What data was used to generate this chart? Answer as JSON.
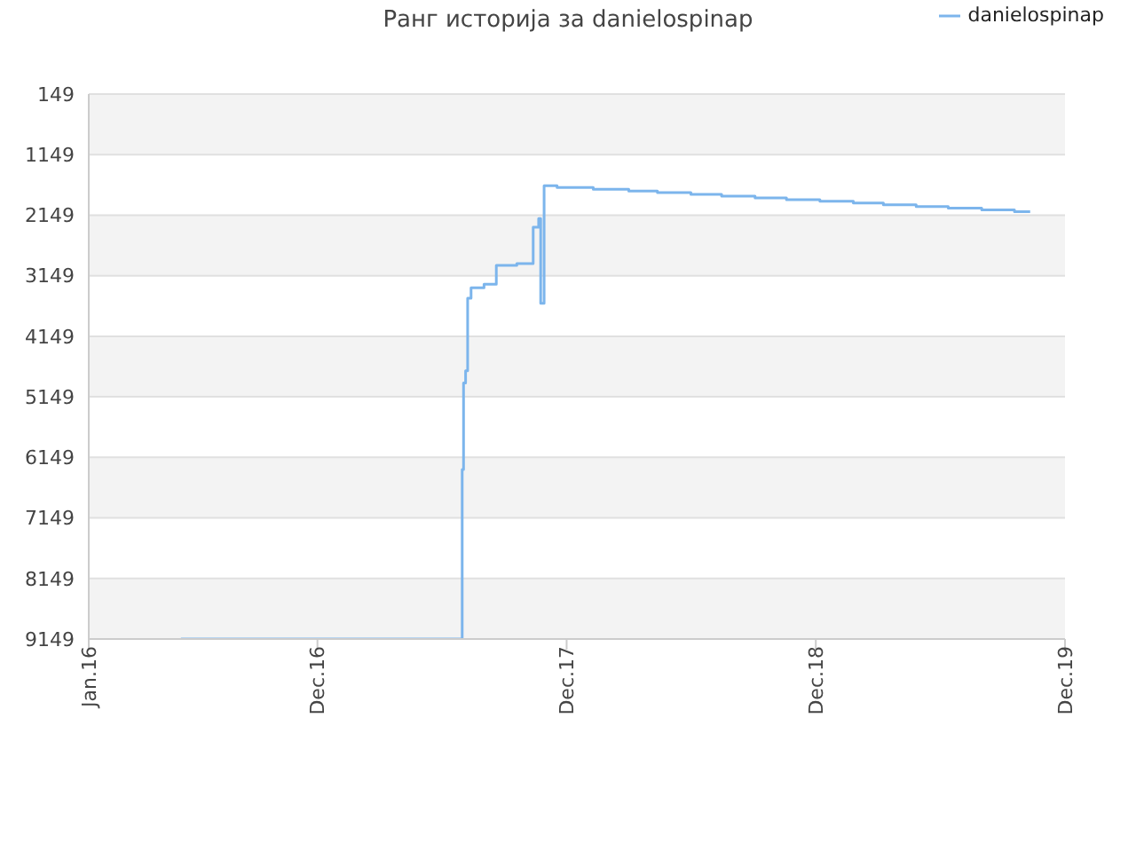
{
  "chart_data": {
    "type": "step",
    "title": "Ранг историја за danielospinap",
    "x": [
      "2016-05-15",
      "2017-07-01",
      "2017-07-03",
      "2017-07-06",
      "2017-07-09",
      "2017-07-14",
      "2017-08-02",
      "2017-08-20",
      "2017-09-19",
      "2017-10-13",
      "2017-10-21",
      "2017-10-24",
      "2017-10-29",
      "2017-11-17",
      "2018-01-09",
      "2018-03-02",
      "2018-04-13",
      "2018-06-01",
      "2018-07-16",
      "2018-09-03",
      "2018-10-19",
      "2018-12-07",
      "2019-01-25",
      "2019-03-10",
      "2019-04-27",
      "2019-06-13",
      "2019-08-01",
      "2019-09-18",
      "2019-10-11"
    ],
    "series": [
      {
        "name": "danielospinap",
        "color": "#7cb5ec",
        "values": [
          9149,
          6349,
          4920,
          4720,
          3520,
          3349,
          3290,
          2977,
          2950,
          2349,
          2206,
          3606,
          1663,
          1692,
          1720,
          1749,
          1777,
          1806,
          1834,
          1863,
          1892,
          1920,
          1949,
          1977,
          2006,
          2034,
          2063,
          2092,
          2092
        ]
      }
    ],
    "xlim": [
      "2016-01-01",
      "2019-12-01"
    ],
    "xticks": [
      {
        "value": "2016-01-01",
        "label": "Jan.16"
      },
      {
        "value": "2016-12-01",
        "label": "Dec.16"
      },
      {
        "value": "2017-12-01",
        "label": "Dec.17"
      },
      {
        "value": "2018-12-01",
        "label": "Dec.18"
      },
      {
        "value": "2019-12-01",
        "label": "Dec.19"
      }
    ],
    "ylim": [
      9149,
      149
    ],
    "yticks": [
      149,
      1149,
      2149,
      3149,
      4149,
      5149,
      6149,
      7149,
      8149,
      9149
    ],
    "grid": "y",
    "legend": "top right",
    "marker": "none",
    "line_style": "solid"
  }
}
